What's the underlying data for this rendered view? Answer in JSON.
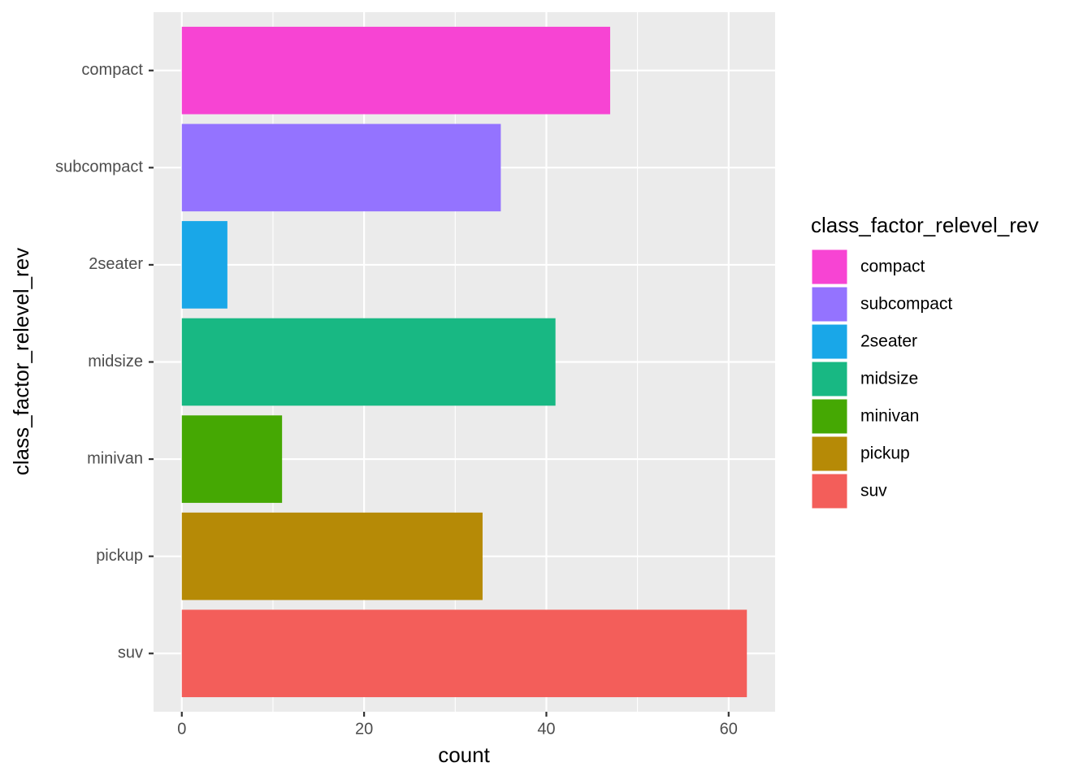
{
  "chart_data": {
    "type": "bar",
    "orientation": "horizontal",
    "x_label": "count",
    "y_label": "class_factor_relevel_rev",
    "legend_title": "class_factor_relevel_rev",
    "legend_position": "right",
    "categories": [
      "compact",
      "subcompact",
      "2seater",
      "midsize",
      "minivan",
      "pickup",
      "suv"
    ],
    "values": [
      47,
      35,
      5,
      41,
      11,
      33,
      62
    ],
    "colors": [
      "#F744D3",
      "#9473FF",
      "#19A7E8",
      "#18B883",
      "#45A803",
      "#B68A06",
      "#F35E5A"
    ],
    "xlim": [
      -3.1,
      65.1
    ],
    "xticks": [
      0,
      20,
      40,
      60
    ],
    "xminor": [
      10,
      30,
      50
    ],
    "grid": true
  }
}
